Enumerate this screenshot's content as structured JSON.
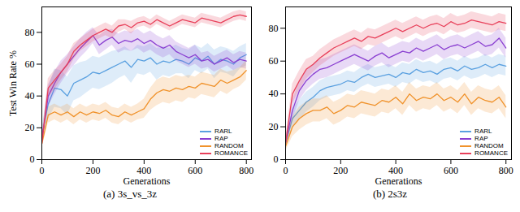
{
  "chart_data": [
    {
      "type": "line",
      "title": "(a) 3s_vs_3z",
      "x_label": "Generations",
      "y_label": "Test Win Rate %",
      "x": [
        0,
        25,
        50,
        75,
        100,
        125,
        150,
        175,
        200,
        225,
        250,
        275,
        300,
        325,
        350,
        375,
        400,
        425,
        450,
        475,
        500,
        525,
        550,
        575,
        600,
        625,
        650,
        675,
        700,
        725,
        750,
        775,
        800
      ],
      "xlim": [
        0,
        820
      ],
      "ylim": [
        0,
        96
      ],
      "xticks": [
        0,
        200,
        400,
        600,
        800
      ],
      "yticks": [
        0,
        20,
        40,
        60,
        80
      ],
      "legend": "lower right",
      "grid": false,
      "series": [
        {
          "name": "RARL",
          "color": "#5aa0e0",
          "values": [
            15,
            35,
            45,
            44,
            40,
            48,
            50,
            52,
            55,
            54,
            56,
            58,
            60,
            62,
            58,
            63,
            62,
            64,
            60,
            62,
            61,
            63,
            62,
            60,
            64,
            62,
            65,
            60,
            63,
            62,
            60,
            64,
            66
          ],
          "error": [
            4,
            10,
            12,
            12,
            12,
            11,
            11,
            10,
            10,
            10,
            10,
            10,
            9,
            9,
            10,
            9,
            9,
            9,
            10,
            9,
            9,
            9,
            8,
            9,
            8,
            8,
            8,
            9,
            8,
            8,
            8,
            7,
            7
          ]
        },
        {
          "name": "RAP",
          "color": "#8a3fd1",
          "values": [
            12,
            40,
            48,
            55,
            60,
            65,
            70,
            74,
            78,
            72,
            75,
            77,
            73,
            75,
            74,
            76,
            73,
            75,
            72,
            70,
            72,
            68,
            66,
            64,
            66,
            62,
            63,
            60,
            62,
            64,
            61,
            63,
            62
          ],
          "error": [
            3,
            7,
            7,
            7,
            6,
            6,
            6,
            6,
            5,
            6,
            6,
            5,
            6,
            6,
            6,
            6,
            6,
            6,
            6,
            6,
            6,
            6,
            6,
            6,
            6,
            5,
            5,
            5,
            5,
            5,
            5,
            5,
            5
          ]
        },
        {
          "name": "RANDOM",
          "color": "#f0922b",
          "values": [
            10,
            28,
            30,
            28,
            30,
            27,
            30,
            28,
            30,
            29,
            31,
            28,
            27,
            30,
            28,
            30,
            32,
            38,
            42,
            44,
            43,
            45,
            44,
            46,
            45,
            48,
            47,
            46,
            50,
            48,
            50,
            52,
            56
          ],
          "error": [
            3,
            5,
            5,
            5,
            5,
            5,
            5,
            5,
            5,
            5,
            5,
            5,
            5,
            5,
            5,
            5,
            6,
            7,
            8,
            8,
            8,
            8,
            8,
            7,
            7,
            7,
            7,
            7,
            7,
            7,
            6,
            6,
            6
          ]
        },
        {
          "name": "ROMANCE",
          "color": "#e8405a",
          "values": [
            10,
            45,
            50,
            55,
            60,
            68,
            72,
            75,
            78,
            80,
            82,
            80,
            84,
            85,
            83,
            86,
            87,
            85,
            88,
            86,
            84,
            86,
            88,
            87,
            86,
            89,
            88,
            87,
            86,
            88,
            90,
            91,
            90
          ],
          "error": [
            3,
            6,
            6,
            5,
            5,
            5,
            4,
            4,
            4,
            4,
            4,
            4,
            4,
            3,
            4,
            3,
            3,
            3,
            3,
            3,
            3,
            3,
            3,
            3,
            3,
            3,
            3,
            3,
            3,
            3,
            3,
            3,
            3
          ]
        }
      ]
    },
    {
      "type": "line",
      "title": "(b) 2s3z",
      "x_label": "Generations",
      "x": [
        0,
        25,
        50,
        75,
        100,
        125,
        150,
        175,
        200,
        225,
        250,
        275,
        300,
        325,
        350,
        375,
        400,
        425,
        450,
        475,
        500,
        525,
        550,
        575,
        600,
        625,
        650,
        675,
        700,
        725,
        750,
        775,
        800
      ],
      "xlim": [
        0,
        820
      ],
      "ylim": [
        0,
        93
      ],
      "xticks": [
        0,
        200,
        400,
        600,
        800
      ],
      "yticks": [
        0,
        20,
        40,
        60,
        80
      ],
      "legend": "lower right",
      "grid": false,
      "series": [
        {
          "name": "RARL",
          "color": "#5aa0e0",
          "values": [
            10,
            25,
            30,
            35,
            38,
            42,
            44,
            45,
            46,
            48,
            47,
            50,
            52,
            50,
            51,
            52,
            50,
            53,
            52,
            55,
            53,
            54,
            52,
            55,
            56,
            54,
            57,
            55,
            56,
            58,
            56,
            58,
            57
          ],
          "error": [
            3,
            6,
            6,
            6,
            6,
            6,
            6,
            6,
            6,
            6,
            6,
            6,
            6,
            6,
            6,
            6,
            6,
            6,
            6,
            6,
            6,
            6,
            6,
            6,
            6,
            6,
            6,
            6,
            6,
            6,
            6,
            6,
            6
          ]
        },
        {
          "name": "RAP",
          "color": "#8a3fd1",
          "values": [
            10,
            30,
            42,
            48,
            52,
            55,
            56,
            58,
            60,
            62,
            64,
            62,
            60,
            63,
            65,
            62,
            64,
            66,
            65,
            68,
            66,
            68,
            70,
            67,
            69,
            70,
            68,
            70,
            72,
            69,
            70,
            74,
            68
          ],
          "error": [
            3,
            6,
            6,
            6,
            6,
            6,
            6,
            6,
            6,
            6,
            6,
            6,
            6,
            6,
            6,
            6,
            6,
            6,
            6,
            6,
            6,
            6,
            6,
            6,
            6,
            6,
            6,
            6,
            6,
            6,
            6,
            6,
            6
          ]
        },
        {
          "name": "RANDOM",
          "color": "#f0922b",
          "values": [
            8,
            20,
            25,
            28,
            30,
            30,
            32,
            28,
            30,
            33,
            32,
            35,
            34,
            33,
            36,
            35,
            38,
            34,
            40,
            36,
            38,
            37,
            40,
            36,
            38,
            35,
            40,
            34,
            38,
            36,
            35,
            38,
            32
          ],
          "error": [
            3,
            6,
            7,
            7,
            7,
            7,
            7,
            7,
            7,
            7,
            7,
            7,
            7,
            7,
            7,
            7,
            7,
            7,
            7,
            7,
            7,
            7,
            7,
            7,
            7,
            7,
            7,
            7,
            7,
            7,
            7,
            7,
            7
          ]
        },
        {
          "name": "ROMANCE",
          "color": "#e8405a",
          "values": [
            10,
            40,
            48,
            55,
            58,
            62,
            65,
            68,
            70,
            72,
            74,
            72,
            75,
            74,
            76,
            78,
            80,
            78,
            80,
            82,
            80,
            82,
            83,
            81,
            84,
            82,
            83,
            85,
            84,
            83,
            82,
            84,
            83
          ],
          "error": [
            3,
            6,
            6,
            6,
            5,
            5,
            5,
            5,
            5,
            5,
            5,
            5,
            5,
            5,
            5,
            5,
            5,
            5,
            5,
            5,
            5,
            5,
            5,
            5,
            5,
            5,
            5,
            5,
            5,
            5,
            5,
            5,
            5
          ]
        }
      ]
    }
  ]
}
